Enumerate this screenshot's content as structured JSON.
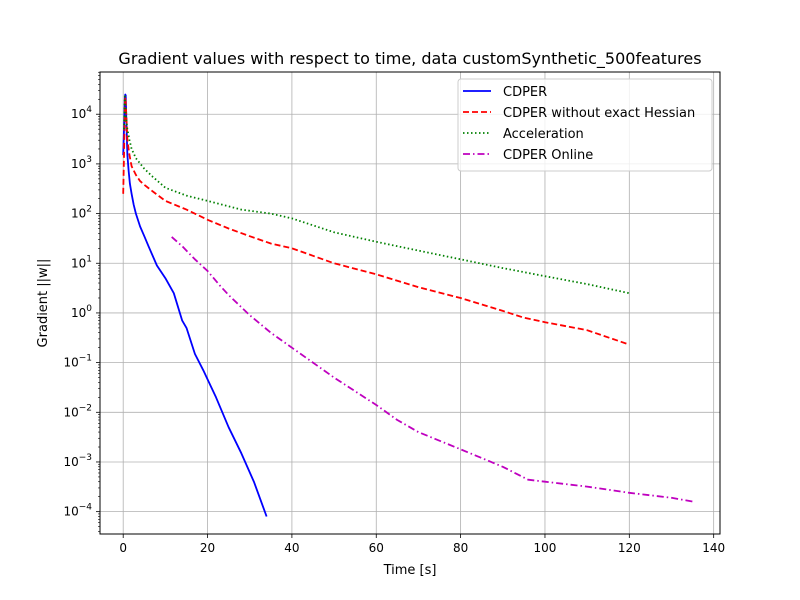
{
  "chart_data": {
    "type": "line",
    "title": "Gradient values with respect to time, data customSynthetic_500features",
    "xlabel": "Time [s]",
    "ylabel": "Gradient ||w||",
    "xlim": [
      -5.5,
      141.5
    ],
    "ylim_log10": [
      -4.45,
      4.85
    ],
    "yscale": "log",
    "grid": true,
    "legend_placement": "upper right",
    "xticks": [
      0,
      20,
      40,
      60,
      80,
      100,
      120,
      140
    ],
    "yticks": [
      {
        "exp": 4,
        "label": "4"
      },
      {
        "exp": 3,
        "label": "3"
      },
      {
        "exp": 2,
        "label": "2"
      },
      {
        "exp": 1,
        "label": "1"
      },
      {
        "exp": 0,
        "label": "0"
      },
      {
        "exp": -1,
        "label": "−1"
      },
      {
        "exp": -2,
        "label": "−2"
      },
      {
        "exp": -3,
        "label": "−3"
      },
      {
        "exp": -4,
        "label": "−4"
      }
    ],
    "ytick_base": "10",
    "series": [
      {
        "name": "CDPER",
        "color": "#0000ff",
        "dash": "solid",
        "x": [
          0,
          0.2,
          0.4,
          0.5,
          0.6,
          0.8,
          1.0,
          1.3,
          1.6,
          2,
          2.5,
          3,
          4,
          5,
          6,
          8,
          10,
          12,
          14,
          15,
          17,
          19,
          22,
          25,
          28,
          31,
          34
        ],
        "y": [
          1500,
          5000,
          22000,
          25000,
          24000,
          5000,
          1500,
          700,
          400,
          250,
          150,
          100,
          55,
          35,
          22,
          9,
          5,
          2.5,
          0.7,
          0.5,
          0.15,
          0.07,
          0.02,
          0.005,
          0.0015,
          0.0004,
          8e-05
        ]
      },
      {
        "name": "CDPER without exact Hessian",
        "color": "#ff0000",
        "dash": "dashed",
        "x": [
          0,
          0.2,
          0.4,
          0.5,
          0.6,
          0.8,
          1.0,
          1.5,
          2,
          3,
          4,
          5,
          7,
          10,
          15,
          20,
          25,
          30,
          35,
          40,
          50,
          60,
          70,
          80,
          90,
          95,
          100,
          110,
          120
        ],
        "y": [
          250,
          1500,
          15000,
          22000,
          18000,
          7000,
          3000,
          1500,
          900,
          600,
          450,
          380,
          280,
          180,
          120,
          75,
          50,
          35,
          25,
          20,
          10,
          6,
          3.3,
          2,
          1.1,
          0.8,
          0.65,
          0.45,
          0.23
        ]
      },
      {
        "name": "Acceleration",
        "color": "#008000",
        "dash": "dotted",
        "x": [
          0.2,
          0.4,
          0.6,
          1.0,
          1.5,
          2,
          3,
          5,
          7,
          10,
          15,
          20,
          25,
          28,
          35,
          40,
          50,
          60,
          70,
          80,
          90,
          100,
          110,
          120
        ],
        "y": [
          5000,
          25000,
          10000,
          5000,
          3000,
          2000,
          1300,
          800,
          550,
          330,
          230,
          180,
          140,
          120,
          100,
          80,
          42,
          27,
          18,
          12,
          8,
          5.5,
          3.8,
          2.5
        ]
      },
      {
        "name": "CDPER Online",
        "color": "#bf00bf",
        "dash": "dashdot",
        "x": [
          11.5,
          14,
          17,
          20,
          23,
          25,
          30,
          35,
          40,
          50,
          60,
          65,
          70,
          80,
          90,
          96,
          100,
          110,
          120,
          130,
          135
        ],
        "y": [
          34,
          22,
          12,
          7,
          3.5,
          2.3,
          0.9,
          0.4,
          0.2,
          0.05,
          0.014,
          0.007,
          0.004,
          0.0018,
          0.0008,
          0.00044,
          0.0004,
          0.00032,
          0.00024,
          0.00019,
          0.00016
        ]
      }
    ]
  }
}
